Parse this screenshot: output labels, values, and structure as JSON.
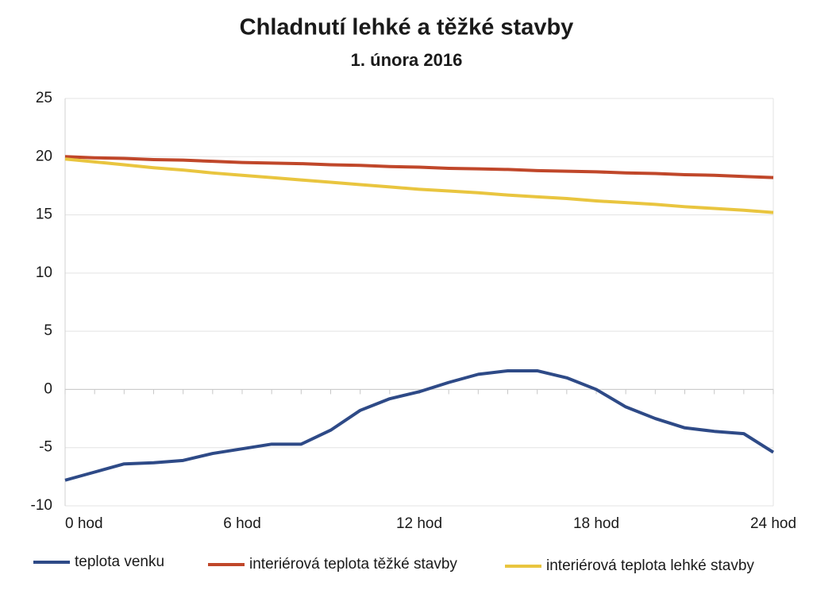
{
  "chart_data": {
    "type": "line",
    "title": "Chladnutí lehké a těžké stavby",
    "subtitle": "1. února 2016",
    "categories": [
      "0 hod",
      null,
      null,
      null,
      null,
      null,
      "6 hod",
      null,
      null,
      null,
      null,
      null,
      "12 hod",
      null,
      null,
      null,
      null,
      null,
      "18 hod",
      null,
      null,
      null,
      null,
      null,
      "24 hod"
    ],
    "series": [
      {
        "name": "teplota venku",
        "color": "#2e4a87",
        "values": [
          -7.8,
          -7.1,
          -6.4,
          -6.3,
          -6.1,
          -5.5,
          -5.1,
          -4.7,
          -4.7,
          -3.5,
          -1.8,
          -0.8,
          -0.2,
          0.6,
          1.3,
          1.6,
          1.6,
          1.0,
          0.0,
          -1.5,
          -2.5,
          -3.3,
          -3.6,
          -3.8,
          -5.4
        ]
      },
      {
        "name": "interiérová teplota těžké stavby",
        "color": "#c0472a",
        "values": [
          20.0,
          19.9,
          19.85,
          19.75,
          19.7,
          19.6,
          19.5,
          19.45,
          19.4,
          19.3,
          19.25,
          19.15,
          19.1,
          19.0,
          18.95,
          18.9,
          18.8,
          18.75,
          18.7,
          18.6,
          18.55,
          18.45,
          18.4,
          18.3,
          18.2
        ]
      },
      {
        "name": "interiérová teplota lehké stavby",
        "color": "#e9c53f",
        "values": [
          19.8,
          19.55,
          19.3,
          19.05,
          18.85,
          18.6,
          18.4,
          18.2,
          18.0,
          17.8,
          17.6,
          17.4,
          17.2,
          17.05,
          16.9,
          16.7,
          16.55,
          16.4,
          16.2,
          16.05,
          15.9,
          15.7,
          15.55,
          15.4,
          15.2
        ]
      }
    ],
    "ylim": [
      -10,
      25
    ],
    "yticks": [
      -10,
      -5,
      0,
      5,
      10,
      15,
      20,
      25
    ],
    "grid": true,
    "legend": "bottom"
  }
}
